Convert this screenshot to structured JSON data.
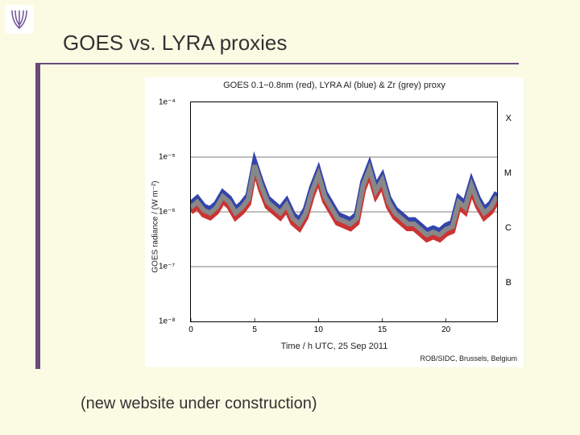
{
  "slide": {
    "title": "GOES vs. LYRA proxies",
    "note": "(new website under construction)",
    "background_color": "#fbfbe4",
    "accent_color": "#6b4a7a",
    "logo": {
      "name": "lyra-logo",
      "stroke": "#7a5aa0"
    }
  },
  "chart": {
    "type": "line",
    "title": "GOES 0.1−0.8nm (red), LYRA Al (blue) & Zr (grey) proxy",
    "ylabel": "GOES radiance / (W m⁻²)",
    "xlabel": "Time / h UTC, 25 Sep 2011",
    "credit": "ROB/SIDC, Brussels, Belgium",
    "background_color": "#ffffff",
    "axis_color": "#000000",
    "text_color": "#222222",
    "title_fontsize": 11,
    "label_fontsize": 10,
    "xlim": [
      0,
      24
    ],
    "xticks": [
      0,
      5,
      10,
      15,
      20
    ],
    "yscale": "log",
    "ylim_exp": [
      -8,
      -4
    ],
    "yticks_exp": [
      -4,
      -5,
      -6,
      -7,
      -8
    ],
    "ytick_labels": [
      "1e⁻⁴",
      "1e⁻⁵",
      "1e⁻⁶",
      "1e⁻⁷",
      "1e⁻⁸"
    ],
    "class_lines_exp": [
      -4,
      -5,
      -6,
      -7,
      -8
    ],
    "class_labels": [
      "X",
      "M",
      "C",
      "B"
    ],
    "class_label_exp": [
      -4.3,
      -5.3,
      -6.3,
      -7.3
    ],
    "series": [
      {
        "name": "GOES 0.1-0.8nm",
        "color": "#cc3333",
        "stroke_width": 1.2,
        "x": [
          0,
          0.5,
          1,
          1.5,
          2,
          2.5,
          3,
          3.5,
          4,
          4.5,
          5,
          5.5,
          6,
          6.5,
          7,
          7.5,
          8,
          8.5,
          9,
          9.5,
          10,
          10.5,
          11,
          11.5,
          12,
          12.5,
          13,
          13.5,
          14,
          14.5,
          15,
          15.5,
          16,
          16.5,
          17,
          17.5,
          18,
          18.5,
          19,
          19.5,
          20,
          20.5,
          21,
          21.5,
          22,
          22.5,
          23,
          23.5,
          24
        ],
        "y_exp": [
          -6.0,
          -5.9,
          -6.05,
          -6.1,
          -6.0,
          -5.8,
          -5.9,
          -6.1,
          -6.0,
          -5.85,
          -5.2,
          -5.6,
          -5.9,
          -6.0,
          -6.1,
          -5.95,
          -6.2,
          -6.3,
          -6.1,
          -5.7,
          -5.4,
          -5.8,
          -6.0,
          -6.2,
          -6.25,
          -6.3,
          -6.2,
          -5.6,
          -5.3,
          -5.7,
          -5.5,
          -5.9,
          -6.1,
          -6.2,
          -6.3,
          -6.3,
          -6.4,
          -6.5,
          -6.45,
          -6.5,
          -6.4,
          -6.35,
          -5.9,
          -6.0,
          -5.6,
          -5.9,
          -6.1,
          -6.0,
          -5.8
        ]
      },
      {
        "name": "LYRA Al proxy",
        "color": "#3344aa",
        "stroke_width": 1.2,
        "x": [
          0,
          0.5,
          1,
          1.5,
          2,
          2.5,
          3,
          3.5,
          4,
          4.5,
          5,
          5.5,
          6,
          6.5,
          7,
          7.5,
          8,
          8.5,
          9,
          9.5,
          10,
          10.5,
          11,
          11.5,
          12,
          12.5,
          13,
          13.5,
          14,
          14.5,
          15,
          15.5,
          16,
          16.5,
          17,
          17.5,
          18,
          18.5,
          19,
          19.5,
          20,
          20.5,
          21,
          21.5,
          22,
          22.5,
          23,
          23.5,
          24
        ],
        "y_exp": [
          -5.85,
          -5.75,
          -5.9,
          -5.95,
          -5.85,
          -5.65,
          -5.75,
          -5.95,
          -5.85,
          -5.7,
          -5.1,
          -5.45,
          -5.75,
          -5.85,
          -5.95,
          -5.8,
          -6.05,
          -6.15,
          -5.95,
          -5.55,
          -5.25,
          -5.65,
          -5.85,
          -6.05,
          -6.1,
          -6.15,
          -6.05,
          -5.45,
          -5.15,
          -5.55,
          -5.35,
          -5.75,
          -5.95,
          -6.05,
          -6.15,
          -6.15,
          -6.25,
          -6.35,
          -6.3,
          -6.35,
          -6.25,
          -6.2,
          -5.75,
          -5.85,
          -5.45,
          -5.75,
          -5.95,
          -5.85,
          -5.65
        ]
      },
      {
        "name": "LYRA Zr proxy",
        "color": "#888888",
        "stroke_width": 1.0,
        "x": [
          0,
          0.5,
          1,
          1.5,
          2,
          2.5,
          3,
          3.5,
          4,
          4.5,
          5,
          5.5,
          6,
          6.5,
          7,
          7.5,
          8,
          8.5,
          9,
          9.5,
          10,
          10.5,
          11,
          11.5,
          12,
          12.5,
          13,
          13.5,
          14,
          14.5,
          15,
          15.5,
          16,
          16.5,
          17,
          17.5,
          18,
          18.5,
          19,
          19.5,
          20,
          20.5,
          21,
          21.5,
          22,
          22.5,
          23,
          23.5,
          24
        ],
        "y_exp": [
          -5.92,
          -5.82,
          -5.97,
          -6.02,
          -5.92,
          -5.72,
          -5.82,
          -6.02,
          -5.92,
          -5.77,
          -5.15,
          -5.52,
          -5.82,
          -5.92,
          -6.02,
          -5.87,
          -6.12,
          -6.22,
          -6.02,
          -5.62,
          -5.32,
          -5.72,
          -5.92,
          -6.12,
          -6.17,
          -6.22,
          -6.12,
          -5.52,
          -5.22,
          -5.62,
          -5.42,
          -5.82,
          -6.02,
          -6.12,
          -6.22,
          -6.22,
          -6.32,
          -6.42,
          -6.37,
          -6.42,
          -6.32,
          -6.27,
          -5.82,
          -5.92,
          -5.52,
          -5.82,
          -6.02,
          -5.92,
          -5.72
        ]
      }
    ]
  }
}
